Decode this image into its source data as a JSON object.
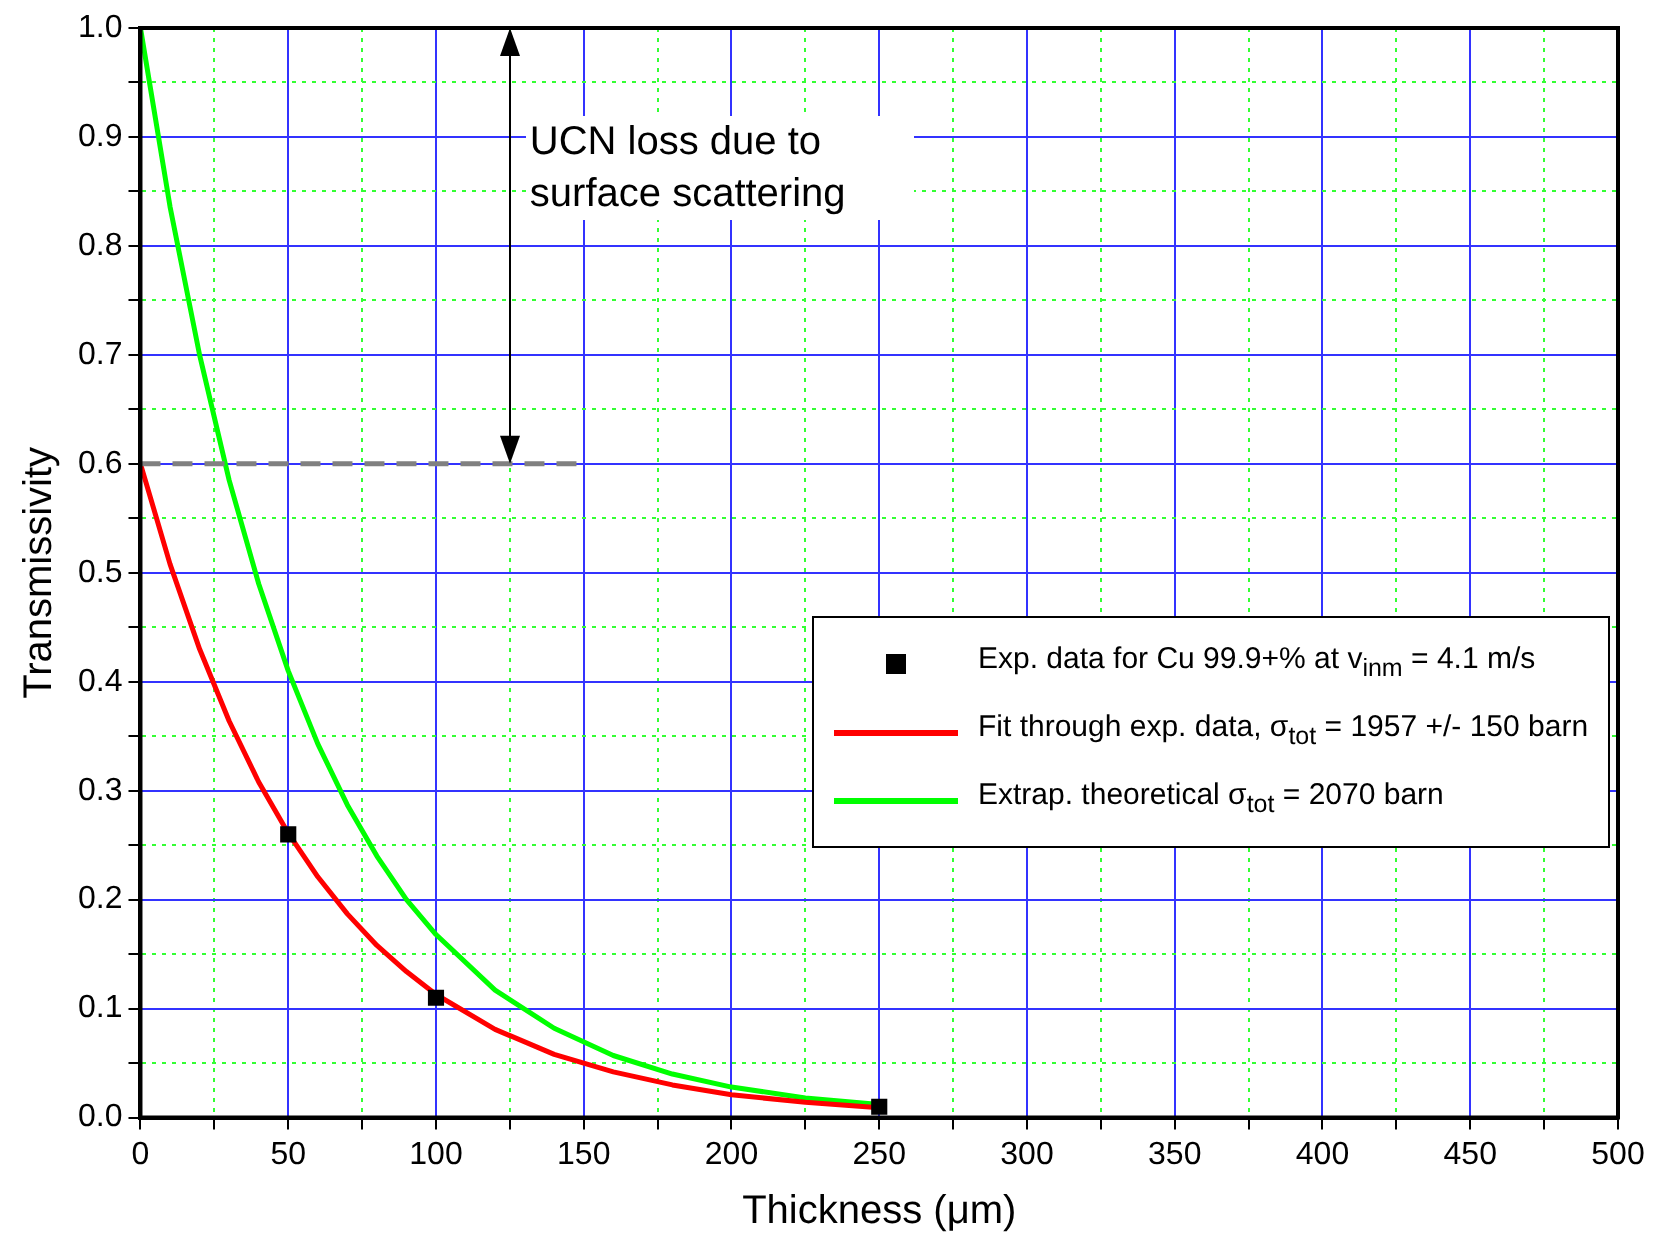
{
  "chart_data": {
    "type": "line",
    "xlabel": "Thickness (μm)",
    "ylabel": "Transmissivity",
    "xlim": [
      0,
      500
    ],
    "xticks": [
      0,
      {
        "value": 25,
        "label": null
      },
      50,
      {
        "value": 75,
        "label": null
      },
      100,
      {
        "value": 125,
        "label": null
      },
      150,
      {
        "value": 175,
        "label": null
      },
      200,
      {
        "value": 225,
        "label": null
      },
      250,
      {
        "value": 275,
        "label": null
      },
      300,
      {
        "value": 325,
        "label": null
      },
      350,
      {
        "value": 375,
        "label": null
      },
      400,
      {
        "value": 425,
        "label": null
      },
      450,
      {
        "value": 475,
        "label": null
      },
      500
    ],
    "ylim": [
      0,
      1
    ],
    "yticks": [
      {
        "value": 0,
        "label": "0.0"
      },
      {
        "value": 0.05,
        "label": null
      },
      {
        "value": 0.1,
        "label": "0.1"
      },
      {
        "value": 0.15,
        "label": null
      },
      {
        "value": 0.2,
        "label": "0.2"
      },
      {
        "value": 0.25,
        "label": null
      },
      {
        "value": 0.3,
        "label": "0.3"
      },
      {
        "value": 0.35,
        "label": null
      },
      {
        "value": 0.4,
        "label": "0.4"
      },
      {
        "value": 0.45,
        "label": null
      },
      {
        "value": 0.5,
        "label": "0.5"
      },
      {
        "value": 0.55,
        "label": null
      },
      {
        "value": 0.6,
        "label": "0.6"
      },
      {
        "value": 0.65,
        "label": null
      },
      {
        "value": 0.7,
        "label": "0.7"
      },
      {
        "value": 0.75,
        "label": null
      },
      {
        "value": 0.8,
        "label": "0.8"
      },
      {
        "value": 0.85,
        "label": null
      },
      {
        "value": 0.9,
        "label": "0.9"
      },
      {
        "value": 0.95,
        "label": null
      },
      {
        "value": 1.0,
        "label": "1.0"
      }
    ],
    "grid": true,
    "legend": "right",
    "annotations": [
      "UCN loss due to surface scattering"
    ],
    "series": [
      {
        "color": "#808080",
        "line_style": "dashed",
        "marker": "none",
        "x": [
          0,
          150
        ],
        "values": [
          0.6,
          0.6
        ]
      },
      {
        "type": "scatter",
        "name": "Exp. data for Cu 99.9+% at v$_{inm}$ = 4.1 m/s",
        "color": "#000000",
        "marker": "square",
        "x": [
          50,
          100,
          250
        ],
        "values": [
          0.26,
          0.11,
          0.01
        ]
      },
      {
        "name": "Fit through exp. data, σ$_{tot}$ = 1957 +/- 150 barn",
        "color": "#ff0000",
        "marker": "none",
        "line_style": "solid",
        "x": [
          0,
          10,
          20,
          30,
          40,
          50,
          60,
          70,
          80,
          90,
          100,
          120,
          140,
          160,
          180,
          200,
          225,
          250
        ],
        "values": [
          0.6,
          0.508,
          0.43,
          0.364,
          0.308,
          0.261,
          0.221,
          0.187,
          0.158,
          0.134,
          0.113,
          0.081,
          0.058,
          0.042,
          0.03,
          0.021,
          0.014,
          0.009
        ]
      },
      {
        "name": "Extrap. theoretical σ$_{tot}$ = 2070 barn",
        "color": "#00ff00",
        "marker": "none",
        "line_style": "solid",
        "x": [
          0,
          10,
          20,
          30,
          40,
          50,
          60,
          70,
          80,
          90,
          100,
          120,
          140,
          160,
          180,
          200,
          225,
          250
        ],
        "values": [
          1.0,
          0.836,
          0.7,
          0.585,
          0.49,
          0.41,
          0.343,
          0.287,
          0.24,
          0.2,
          0.168,
          0.117,
          0.082,
          0.057,
          0.04,
          0.028,
          0.018,
          0.012
        ]
      }
    ]
  }
}
